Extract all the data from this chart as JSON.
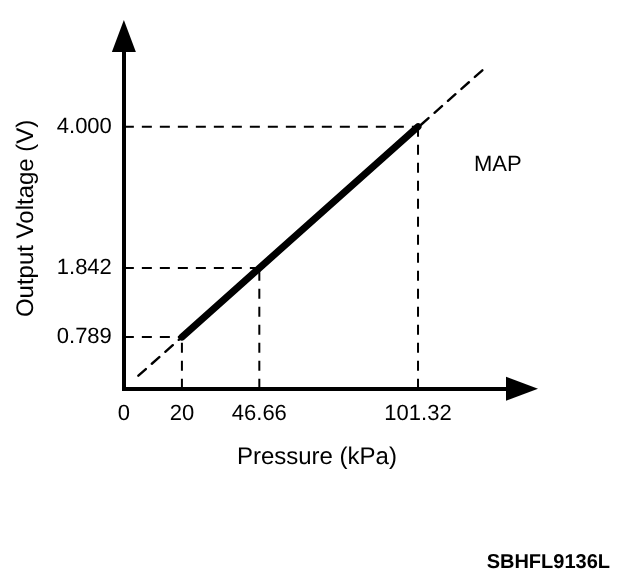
{
  "chart_data": {
    "type": "line",
    "xlabel": "Pressure (kPa)",
    "ylabel": "Output Voltage (V)",
    "series": [
      {
        "color": "#000000",
        "x": [
          20,
          46.66,
          101.32
        ],
        "values": [
          0.789,
          1.842,
          4.0
        ],
        "line_style": "solid"
      },
      {
        "color": "#000000",
        "x": [
          5,
          124.5
        ],
        "values": [
          0.2,
          4.9
        ],
        "line_style": "dashed"
      }
    ],
    "xlim": [
      0,
      133
    ],
    "ylim": [
      0,
      5.2
    ],
    "xticks": [
      0,
      20,
      46.66,
      101.32
    ],
    "yticks": [
      0.789,
      1.842,
      {
        "value": 4.0,
        "label": "4.000"
      }
    ],
    "ref_lines": [
      {
        "axis": "x",
        "value": 20,
        "line_style": "dashed",
        "color": "#000000"
      },
      {
        "axis": "x",
        "value": 46.66,
        "line_style": "dashed",
        "color": "#000000"
      },
      {
        "axis": "x",
        "value": 101.32,
        "line_style": "dashed",
        "color": "#000000"
      },
      {
        "axis": "y",
        "value": 0.789,
        "line_style": "dashed",
        "color": "#000000"
      },
      {
        "axis": "y",
        "value": 1.842,
        "line_style": "dashed",
        "color": "#000000"
      },
      {
        "axis": "y",
        "value": 4.0,
        "line_style": "dashed",
        "color": "#000000"
      }
    ],
    "annotations": [
      "MAP",
      "SBHFL9136L"
    ],
    "marker": "none",
    "grid": false,
    "legend": false
  }
}
